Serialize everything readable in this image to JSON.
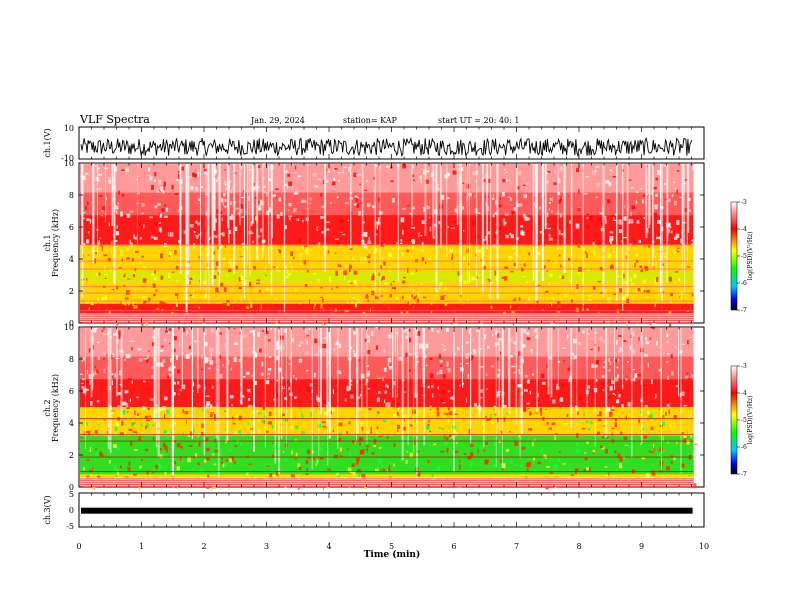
{
  "header": {
    "title": "VLF Spectra",
    "date": "Jan. 29, 2024",
    "station": "station= KAP",
    "start": "start  UT  =   20: 40: 1"
  },
  "chart_data": [
    {
      "type": "line",
      "panel": "ch1-waveform",
      "ylabel": "ch.1(V)",
      "ylim": [
        -10,
        10
      ],
      "yticks": [
        "10",
        "-10"
      ],
      "xlim": [
        0,
        10
      ],
      "description_values": {
        "amplitude_range": [
          -8,
          3
        ]
      }
    },
    {
      "type": "heatmap",
      "panel": "ch1-spectrogram",
      "ylabel_line1": "ch.1",
      "ylabel_line2": "Frequency  (kHz)",
      "ylim": [
        0,
        10
      ],
      "yticks": [
        "0",
        "2",
        "4",
        "6",
        "8",
        "10"
      ],
      "xlim": [
        0,
        9.85
      ],
      "colorbar": {
        "label": "log(PSD)(V²/Hz)",
        "range": [
          -7,
          -3
        ],
        "ticks": [
          "-3",
          "-4",
          "-5",
          "-6",
          "-7"
        ]
      },
      "bands_khz": {
        "yellow": [
          1.2,
          4.9
        ],
        "green": [
          2.6,
          3.2
        ]
      }
    },
    {
      "type": "heatmap",
      "panel": "ch2-spectrogram",
      "ylabel_line1": "ch.2",
      "ylabel_line2": "Frequency  (kHz)",
      "ylim": [
        0,
        10
      ],
      "yticks": [
        "0",
        "2",
        "4",
        "6",
        "8",
        "10"
      ],
      "xlim": [
        0,
        9.85
      ],
      "colorbar": {
        "label": "log(PSD)(V²/Hz)",
        "range": [
          -7,
          -3
        ],
        "ticks": [
          "-3",
          "-4",
          "-5",
          "-6",
          "-7"
        ]
      },
      "bands_khz": {
        "yellow": [
          0.5,
          5.0
        ],
        "green": [
          0.8,
          3.2
        ]
      }
    },
    {
      "type": "line",
      "panel": "ch3-waveform",
      "ylabel": "ch.3(V)",
      "ylim": [
        -5,
        5
      ],
      "yticks": [
        "5",
        "0",
        "-5"
      ],
      "xlabel": "Time  (min)",
      "xlim": [
        0,
        10
      ],
      "xticks": [
        "0",
        "1",
        "2",
        "3",
        "4",
        "5",
        "6",
        "7",
        "8",
        "9",
        "10"
      ],
      "description_values": {
        "level": -0.2
      }
    }
  ]
}
